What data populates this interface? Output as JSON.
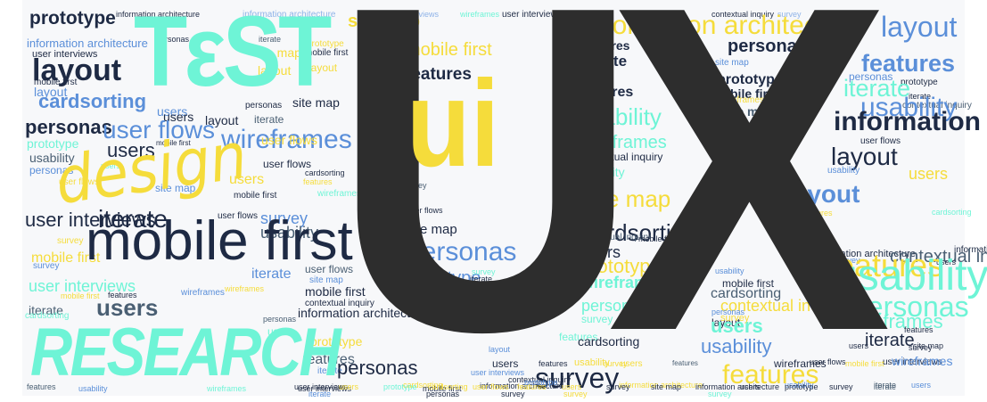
{
  "palette": {
    "dark": "#2d2d2d",
    "navy": "#1e2a44",
    "slate": "#4a5f73",
    "blue": "#5b8fd9",
    "aqua": "#6ef4d6",
    "yellow": "#f5dc3b",
    "lightblue": "#8fb3e8"
  },
  "headline": {
    "ux": "UX",
    "ui": "ui",
    "test": "TεST",
    "design": "design",
    "research": "RESEARCH"
  },
  "words": [
    {
      "text": "prototype",
      "color": "navy"
    },
    {
      "text": "information architecture",
      "color": "navy"
    },
    {
      "text": "information architecture",
      "color": "lightblue"
    },
    {
      "text": "site map",
      "color": "yellow"
    },
    {
      "text": "user interviews",
      "color": "lightblue"
    },
    {
      "text": "wireframes",
      "color": "aqua"
    },
    {
      "text": "user interviews",
      "color": "navy"
    },
    {
      "text": "personas",
      "color": "lightblue"
    },
    {
      "text": "features",
      "color": "navy"
    },
    {
      "text": "contextual inquiry",
      "color": "navy"
    },
    {
      "text": "survey",
      "color": "lightblue"
    },
    {
      "text": "information architecture",
      "color": "blue"
    },
    {
      "text": "personas",
      "color": "navy"
    },
    {
      "text": "iterate",
      "color": "slate"
    },
    {
      "text": "prototype",
      "color": "yellow"
    },
    {
      "text": "user interviews",
      "color": "navy"
    },
    {
      "text": "site map",
      "color": "yellow"
    },
    {
      "text": "mobile first",
      "color": "navy"
    },
    {
      "text": "information architecture",
      "color": "yellow"
    },
    {
      "text": "layout",
      "color": "blue"
    },
    {
      "text": "layout",
      "color": "navy"
    },
    {
      "text": "layout",
      "color": "yellow"
    },
    {
      "text": "features",
      "color": "navy"
    },
    {
      "text": "personas",
      "color": "navy"
    },
    {
      "text": "mobile first",
      "color": "yellow"
    },
    {
      "text": "iterate",
      "color": "navy"
    },
    {
      "text": "site map",
      "color": "blue"
    },
    {
      "text": "prototype",
      "color": "navy"
    },
    {
      "text": "layout",
      "color": "yellow"
    },
    {
      "text": "features",
      "color": "navy"
    },
    {
      "text": "personas",
      "color": "blue"
    },
    {
      "text": "mobile first",
      "color": "navy"
    },
    {
      "text": "layout",
      "color": "blue"
    },
    {
      "text": "cardsorting",
      "color": "blue"
    },
    {
      "text": "site map",
      "color": "navy"
    },
    {
      "text": "features",
      "color": "navy"
    },
    {
      "text": "mobile first",
      "color": "navy"
    },
    {
      "text": "iterate",
      "color": "navy"
    },
    {
      "text": "prototype",
      "color": "navy"
    },
    {
      "text": "contextual inquiry",
      "color": "slate"
    },
    {
      "text": "features",
      "color": "blue"
    },
    {
      "text": "iterate",
      "color": "aqua"
    },
    {
      "text": "usability",
      "color": "aqua"
    },
    {
      "text": "users",
      "color": "blue"
    },
    {
      "text": "users",
      "color": "navy"
    },
    {
      "text": "layout",
      "color": "navy"
    },
    {
      "text": "personas",
      "color": "navy"
    },
    {
      "text": "iterate",
      "color": "slate"
    },
    {
      "text": "wireframes",
      "color": "yellow"
    },
    {
      "text": "site map",
      "color": "slate"
    },
    {
      "text": "usability",
      "color": "blue"
    },
    {
      "text": "personas",
      "color": "navy"
    },
    {
      "text": "user flows",
      "color": "blue"
    },
    {
      "text": "wireframes",
      "color": "blue"
    },
    {
      "text": "wireframes",
      "color": "aqua"
    },
    {
      "text": "information architecture",
      "color": "navy"
    },
    {
      "text": "user flows",
      "color": "navy"
    },
    {
      "text": "prototype",
      "color": "aqua"
    },
    {
      "text": "users",
      "color": "navy"
    },
    {
      "text": "mobile first",
      "color": "navy"
    },
    {
      "text": "usability",
      "color": "slate"
    },
    {
      "text": "personas",
      "color": "blue"
    },
    {
      "text": "users",
      "color": "aqua"
    },
    {
      "text": "user flows",
      "color": "yellow"
    },
    {
      "text": "cardsorting",
      "color": "navy"
    },
    {
      "text": "contextual inquiry",
      "color": "navy"
    },
    {
      "text": "user flows",
      "color": "navy"
    },
    {
      "text": "usability",
      "color": "aqua"
    },
    {
      "text": "layout",
      "color": "navy"
    },
    {
      "text": "user flows",
      "color": "yellow"
    },
    {
      "text": "site map",
      "color": "blue"
    },
    {
      "text": "survey",
      "color": "slate"
    },
    {
      "text": "users",
      "color": "yellow"
    },
    {
      "text": "features",
      "color": "yellow"
    },
    {
      "text": "usability",
      "color": "blue"
    },
    {
      "text": "site map",
      "color": "yellow"
    },
    {
      "text": "layout",
      "color": "blue"
    },
    {
      "text": "users",
      "color": "yellow"
    },
    {
      "text": "mobile first",
      "color": "navy"
    },
    {
      "text": "wireframes",
      "color": "aqua"
    },
    {
      "text": "user interviews",
      "color": "navy"
    },
    {
      "text": "iterate",
      "color": "navy"
    },
    {
      "text": "user flows",
      "color": "navy"
    },
    {
      "text": "survey",
      "color": "blue"
    },
    {
      "text": "user flows",
      "color": "navy"
    },
    {
      "text": "cardsorting",
      "color": "navy"
    },
    {
      "text": "layout",
      "color": "blue"
    },
    {
      "text": "features",
      "color": "yellow"
    },
    {
      "text": "usability",
      "color": "slate"
    },
    {
      "text": "site map",
      "color": "navy"
    },
    {
      "text": "cardsorting",
      "color": "aqua"
    },
    {
      "text": "contextual inquiry",
      "color": "slate"
    },
    {
      "text": "mobile first",
      "color": "navy"
    },
    {
      "text": "survey",
      "color": "yellow"
    },
    {
      "text": "mobile first",
      "color": "yellow"
    },
    {
      "text": "information architecture",
      "color": "navy"
    },
    {
      "text": "information architecture",
      "color": "navy"
    },
    {
      "text": "survey",
      "color": "blue"
    },
    {
      "text": "survey",
      "color": "blue"
    },
    {
      "text": "users",
      "color": "navy"
    },
    {
      "text": "contextual inquiry",
      "color": "slate"
    },
    {
      "text": "users",
      "color": "navy"
    },
    {
      "text": "user interviews",
      "color": "aqua"
    },
    {
      "text": "iterate",
      "color": "blue"
    },
    {
      "text": "user flows",
      "color": "slate"
    },
    {
      "text": "mobile first",
      "color": "navy"
    },
    {
      "text": "personas",
      "color": "blue"
    },
    {
      "text": "prototype",
      "color": "blue"
    },
    {
      "text": "survey",
      "color": "aqua"
    },
    {
      "text": "prototype",
      "color": "yellow"
    },
    {
      "text": "features",
      "color": "yellow"
    },
    {
      "text": "site map",
      "color": "blue"
    },
    {
      "text": "iterate",
      "color": "navy"
    },
    {
      "text": "usability",
      "color": "navy"
    },
    {
      "text": "mobile first",
      "color": "yellow"
    },
    {
      "text": "features",
      "color": "navy"
    },
    {
      "text": "wireframes",
      "color": "blue"
    },
    {
      "text": "wireframes",
      "color": "yellow"
    },
    {
      "text": "mobile first",
      "color": "navy"
    },
    {
      "text": "wireframes",
      "color": "aqua"
    },
    {
      "text": "usability",
      "color": "blue"
    },
    {
      "text": "mobile first",
      "color": "navy"
    },
    {
      "text": "iterate",
      "color": "slate"
    },
    {
      "text": "users",
      "color": "slate"
    },
    {
      "text": "personas",
      "color": "slate"
    },
    {
      "text": "contextual inquiry",
      "color": "navy"
    },
    {
      "text": "usability",
      "color": "aqua"
    },
    {
      "text": "user flows",
      "color": "yellow"
    },
    {
      "text": "personas",
      "color": "aqua"
    },
    {
      "text": "cardsorting",
      "color": "slate"
    },
    {
      "text": "contextual inquiry",
      "color": "yellow"
    },
    {
      "text": "usability",
      "color": "aqua"
    },
    {
      "text": "information architecture",
      "color": "navy"
    },
    {
      "text": "personas",
      "color": "blue"
    },
    {
      "text": "layout",
      "color": "navy"
    },
    {
      "text": "cardsorting",
      "color": "aqua"
    },
    {
      "text": "users",
      "color": "aqua"
    },
    {
      "text": "survey",
      "color": "aqua"
    },
    {
      "text": "users",
      "color": "aqua"
    },
    {
      "text": "personas",
      "color": "aqua"
    },
    {
      "text": "prototype",
      "color": "yellow"
    },
    {
      "text": "layout",
      "color": "blue"
    },
    {
      "text": "features",
      "color": "aqua"
    },
    {
      "text": "survey",
      "color": "yellow"
    },
    {
      "text": "wireframes",
      "color": "aqua"
    },
    {
      "text": "features",
      "color": "navy"
    },
    {
      "text": "site map",
      "color": "navy"
    },
    {
      "text": "cardsorting",
      "color": "navy"
    },
    {
      "text": "iterate",
      "color": "navy"
    },
    {
      "text": "features",
      "color": "slate"
    },
    {
      "text": "iterate",
      "color": "blue"
    },
    {
      "text": "usability",
      "color": "blue"
    },
    {
      "text": "users",
      "color": "navy"
    },
    {
      "text": "survey",
      "color": "navy"
    },
    {
      "text": "user interviews",
      "color": "navy"
    },
    {
      "text": "users",
      "color": "navy"
    },
    {
      "text": "usability",
      "color": "yellow"
    },
    {
      "text": "features",
      "color": "navy"
    },
    {
      "text": "survey",
      "color": "yellow"
    },
    {
      "text": "users",
      "color": "yellow"
    },
    {
      "text": "features",
      "color": "slate"
    },
    {
      "text": "wireframes",
      "color": "navy"
    },
    {
      "text": "user flows",
      "color": "navy"
    },
    {
      "text": "mobile first",
      "color": "yellow"
    },
    {
      "text": "wireframes",
      "color": "blue"
    },
    {
      "text": "personas",
      "color": "navy"
    },
    {
      "text": "user interviews",
      "color": "blue"
    },
    {
      "text": "contextual inquiry",
      "color": "navy"
    },
    {
      "text": "survey",
      "color": "navy"
    },
    {
      "text": "features",
      "color": "yellow"
    },
    {
      "text": "cardsorting",
      "color": "yellow"
    },
    {
      "text": "usability",
      "color": "blue"
    },
    {
      "text": "wireframes",
      "color": "aqua"
    },
    {
      "text": "user interviews",
      "color": "navy"
    },
    {
      "text": "mobile first",
      "color": "navy"
    },
    {
      "text": "information architecture",
      "color": "navy"
    },
    {
      "text": "prototype",
      "color": "blue"
    },
    {
      "text": "information architecture",
      "color": "yellow"
    },
    {
      "text": "usability",
      "color": "blue"
    },
    {
      "text": "iterate",
      "color": "slate"
    },
    {
      "text": "users",
      "color": "blue"
    },
    {
      "text": "iterate",
      "color": "blue"
    },
    {
      "text": "personas",
      "color": "navy"
    },
    {
      "text": "survey",
      "color": "navy"
    },
    {
      "text": "survey",
      "color": "yellow"
    },
    {
      "text": "survey",
      "color": "aqua"
    },
    {
      "text": "user interviews",
      "color": "navy"
    },
    {
      "text": "users",
      "color": "yellow"
    },
    {
      "text": "prototype",
      "color": "aqua"
    },
    {
      "text": "cardsorting",
      "color": "yellow"
    },
    {
      "text": "user flows",
      "color": "yellow"
    },
    {
      "text": "features",
      "color": "yellow"
    },
    {
      "text": "users",
      "color": "yellow"
    },
    {
      "text": "survey",
      "color": "navy"
    },
    {
      "text": "site map",
      "color": "navy"
    },
    {
      "text": "information architecture",
      "color": "navy"
    },
    {
      "text": "users",
      "color": "navy"
    },
    {
      "text": "prototype",
      "color": "navy"
    },
    {
      "text": "survey",
      "color": "navy"
    },
    {
      "text": "iterate",
      "color": "slate"
    },
    {
      "text": "features",
      "color": "slate"
    }
  ]
}
